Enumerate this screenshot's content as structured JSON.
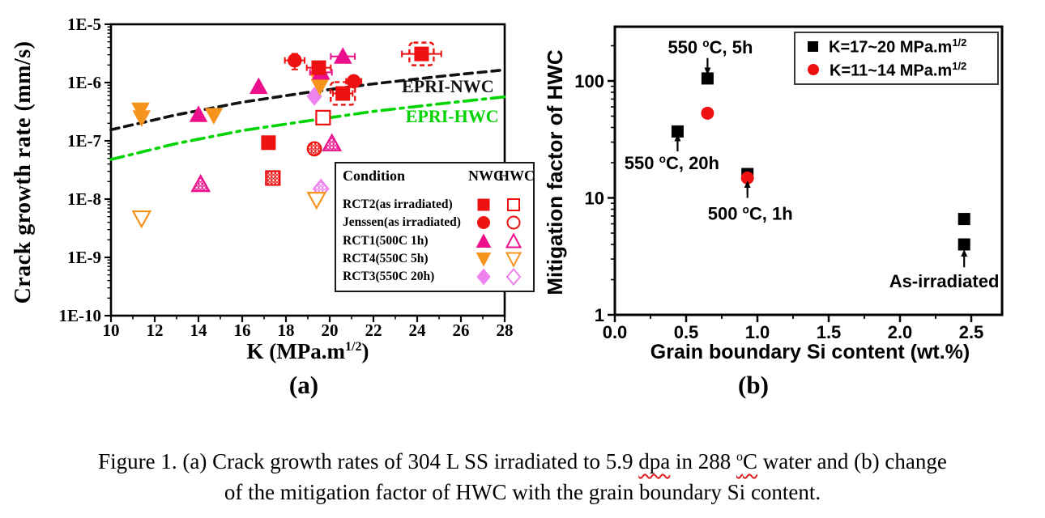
{
  "caption": {
    "l1a": "Figure 1. (a) Crack growth rates of 304 L SS irradiated to 5.9 ",
    "dpa": "dpa",
    "l1b": " in 288 ",
    "sup_o": "o",
    "c_letter": "C",
    "l1c": " water and (b) change",
    "line2": "of the mitigation factor of HWC with the grain boundary Si content."
  },
  "plot_a": {
    "panel": "(a)",
    "ylabel": "Crack growth rate (mm/s)",
    "xlabel_pre": "K (MPa.m",
    "xlabel_sup": "1/2",
    "xlabel_post": ")"
  },
  "plot_b": {
    "panel": "(b)",
    "ylabel": "Mitigation factor of HWC",
    "xlabel": "Grain boundary Si content (wt.%)"
  },
  "legend_a": {
    "header_condition": "Condition",
    "header_nwc": "NWC",
    "header_hwc": "HWC"
  },
  "legend_b": {
    "entries": [
      {
        "pre": "K=17~20 MPa.m",
        "sup": "1/2",
        "marker": "square",
        "color": "#000000"
      },
      {
        "pre": "K=11~14 MPa.m",
        "sup": "1/2",
        "marker": "circle",
        "color": "#ee1111"
      }
    ]
  },
  "chart_data": [
    {
      "type": "scatter",
      "title": "",
      "xlabel": "K (MPa.m^1/2)",
      "ylabel": "Crack growth rate (mm/s)",
      "xlim": [
        10,
        28
      ],
      "xticks": [
        10,
        12,
        14,
        16,
        18,
        20,
        22,
        24,
        26,
        28
      ],
      "ylog": true,
      "ylim": [
        1e-10,
        1e-05
      ],
      "ytick_labels": [
        "1E-5",
        "1E-6",
        "1E-7",
        "1E-8",
        "1E-9",
        "1E-10"
      ],
      "grid": false,
      "curves": [
        {
          "name": "EPRI-NWC",
          "color": "#111111",
          "style": "dashed",
          "label_at": {
            "x": 25.4,
            "y": 8.5e-07
          },
          "points": [
            [
              10,
              1.55e-07
            ],
            [
              13,
              2.8e-07
            ],
            [
              16,
              4.6e-07
            ],
            [
              19,
              6.8e-07
            ],
            [
              22,
              9.5e-07
            ],
            [
              25,
              1.27e-06
            ],
            [
              28,
              1.65e-06
            ]
          ]
        },
        {
          "name": "EPRI-HWC",
          "color": "#00d400",
          "style": "dashdot",
          "label_at": {
            "x": 25.6,
            "y": 2.6e-07
          },
          "points": [
            [
              10,
              4.8e-08
            ],
            [
              13,
              9e-08
            ],
            [
              16,
              1.5e-07
            ],
            [
              19,
              2.2e-07
            ],
            [
              22,
              3.2e-07
            ],
            [
              25,
              4.3e-07
            ],
            [
              28,
              5.7e-07
            ]
          ]
        }
      ],
      "series": [
        {
          "label": "RCT2(as irradiated)",
          "marker": "square",
          "color": "#ee1111",
          "nwc": [
            {
              "x": 17.2,
              "y": 9.3e-08
            },
            {
              "x": 19.5,
              "y": 1.8e-06,
              "xerr": 0.55
            },
            {
              "x": 20.6,
              "y": 6.5e-07,
              "xerr": 0.45,
              "dashed_box": true
            },
            {
              "x": 24.2,
              "y": 3.1e-06,
              "xerr": 0.9,
              "dashed_box": true
            }
          ],
          "hwc": [
            {
              "x": 17.4,
              "y": 2.3e-08,
              "hatch": true
            },
            {
              "x": 19.7,
              "y": 2.5e-07
            }
          ]
        },
        {
          "label": "Jenssen(as irradiated)",
          "marker": "circle",
          "color": "#ee1111",
          "nwc": [
            {
              "x": 18.4,
              "y": 2.4e-06,
              "xerr": 0.45,
              "yerr_frac": 0.3
            },
            {
              "x": 21.1,
              "y": 1.05e-06,
              "xerr": 0.35
            }
          ],
          "hwc": [
            {
              "x": 19.3,
              "y": 7.3e-08,
              "hatch": true
            }
          ]
        },
        {
          "label": "RCT1(500C 1h)",
          "marker": "triangle-up",
          "color": "#ec108c",
          "nwc": [
            {
              "x": 14.0,
              "y": 2.8e-07
            },
            {
              "x": 16.75,
              "y": 8.5e-07
            },
            {
              "x": 19.6,
              "y": 1.5e-06,
              "xerr": 0.5
            },
            {
              "x": 20.6,
              "y": 2.8e-06,
              "xerr": 0.55
            }
          ],
          "hwc": [
            {
              "x": 14.1,
              "y": 1.8e-08,
              "hatch": true
            },
            {
              "x": 20.1,
              "y": 9e-08,
              "hatch": true
            }
          ]
        },
        {
          "label": "RCT4(550C 5h)",
          "marker": "triangle-down",
          "color": "#f7941d",
          "nwc": [
            {
              "x": 11.35,
              "y": 3.4e-07
            },
            {
              "x": 11.4,
              "y": 2.5e-07
            },
            {
              "x": 14.7,
              "y": 2.75e-07
            },
            {
              "x": 19.5,
              "y": 1.1e-06
            },
            {
              "x": 19.55,
              "y": 8.6e-07
            }
          ],
          "hwc": [
            {
              "x": 11.4,
              "y": 4.7e-09
            },
            {
              "x": 19.4,
              "y": 9.8e-09
            }
          ]
        },
        {
          "label": "RCT3(550C 20h)",
          "marker": "diamond",
          "color": "#ee82ee",
          "nwc": [
            {
              "x": 19.3,
              "y": 5.8e-07
            }
          ],
          "hwc": [
            {
              "x": 19.6,
              "y": 1.5e-08,
              "hatch": true
            }
          ]
        }
      ]
    },
    {
      "type": "scatter",
      "title": "",
      "xlabel": "Grain boundary Si content (wt.%)",
      "ylabel": "Mitigation factor of HWC",
      "xlim": [
        0.0,
        2.72
      ],
      "xticks": [
        0.0,
        0.5,
        1.0,
        1.5,
        2.0,
        2.5
      ],
      "xtick_labels": [
        "0.0",
        "0.5",
        "1.0",
        "1.5",
        "2.0",
        "2.5"
      ],
      "ylog": true,
      "ylim": [
        1,
        273
      ],
      "ytick_labels": [
        "1",
        "10",
        "100"
      ],
      "grid": false,
      "series": [
        {
          "label": "K=17~20 MPa.m{1/2}",
          "marker": "square",
          "color": "#000000",
          "points": [
            {
              "x": 0.65,
              "y": 105
            },
            {
              "x": 0.44,
              "y": 37
            },
            {
              "x": 0.93,
              "y": 16
            },
            {
              "x": 2.45,
              "y": 6.6
            },
            {
              "x": 2.45,
              "y": 4.0
            }
          ]
        },
        {
          "label": "K=11~14 MPa.m{1/2}",
          "marker": "circle",
          "color": "#ee1111",
          "points": [
            {
              "x": 0.65,
              "y": 53
            },
            {
              "x": 0.93,
              "y": 14.8
            }
          ]
        }
      ],
      "annotations": [
        {
          "text": "550 {o}C, 5h",
          "tx": 0.67,
          "ty": 195,
          "ax": 0.65,
          "ay_from": 157,
          "ay_to": 126
        },
        {
          "text": "550 {o}C, 20h",
          "tx": 0.4,
          "ty": 20,
          "ax": 0.44,
          "ay_from": 25,
          "ay_to": 31.5
        },
        {
          "text": "500 {o}C, 1h",
          "tx": 0.95,
          "ty": 7.4,
          "ax": 0.93,
          "ay_from": 10,
          "ay_to": 12.6
        },
        {
          "text": "As-irradiated",
          "tx": 2.31,
          "ty": 1.95,
          "ax": 2.45,
          "ay_from": 2.55,
          "ay_to": 3.25
        }
      ]
    }
  ]
}
